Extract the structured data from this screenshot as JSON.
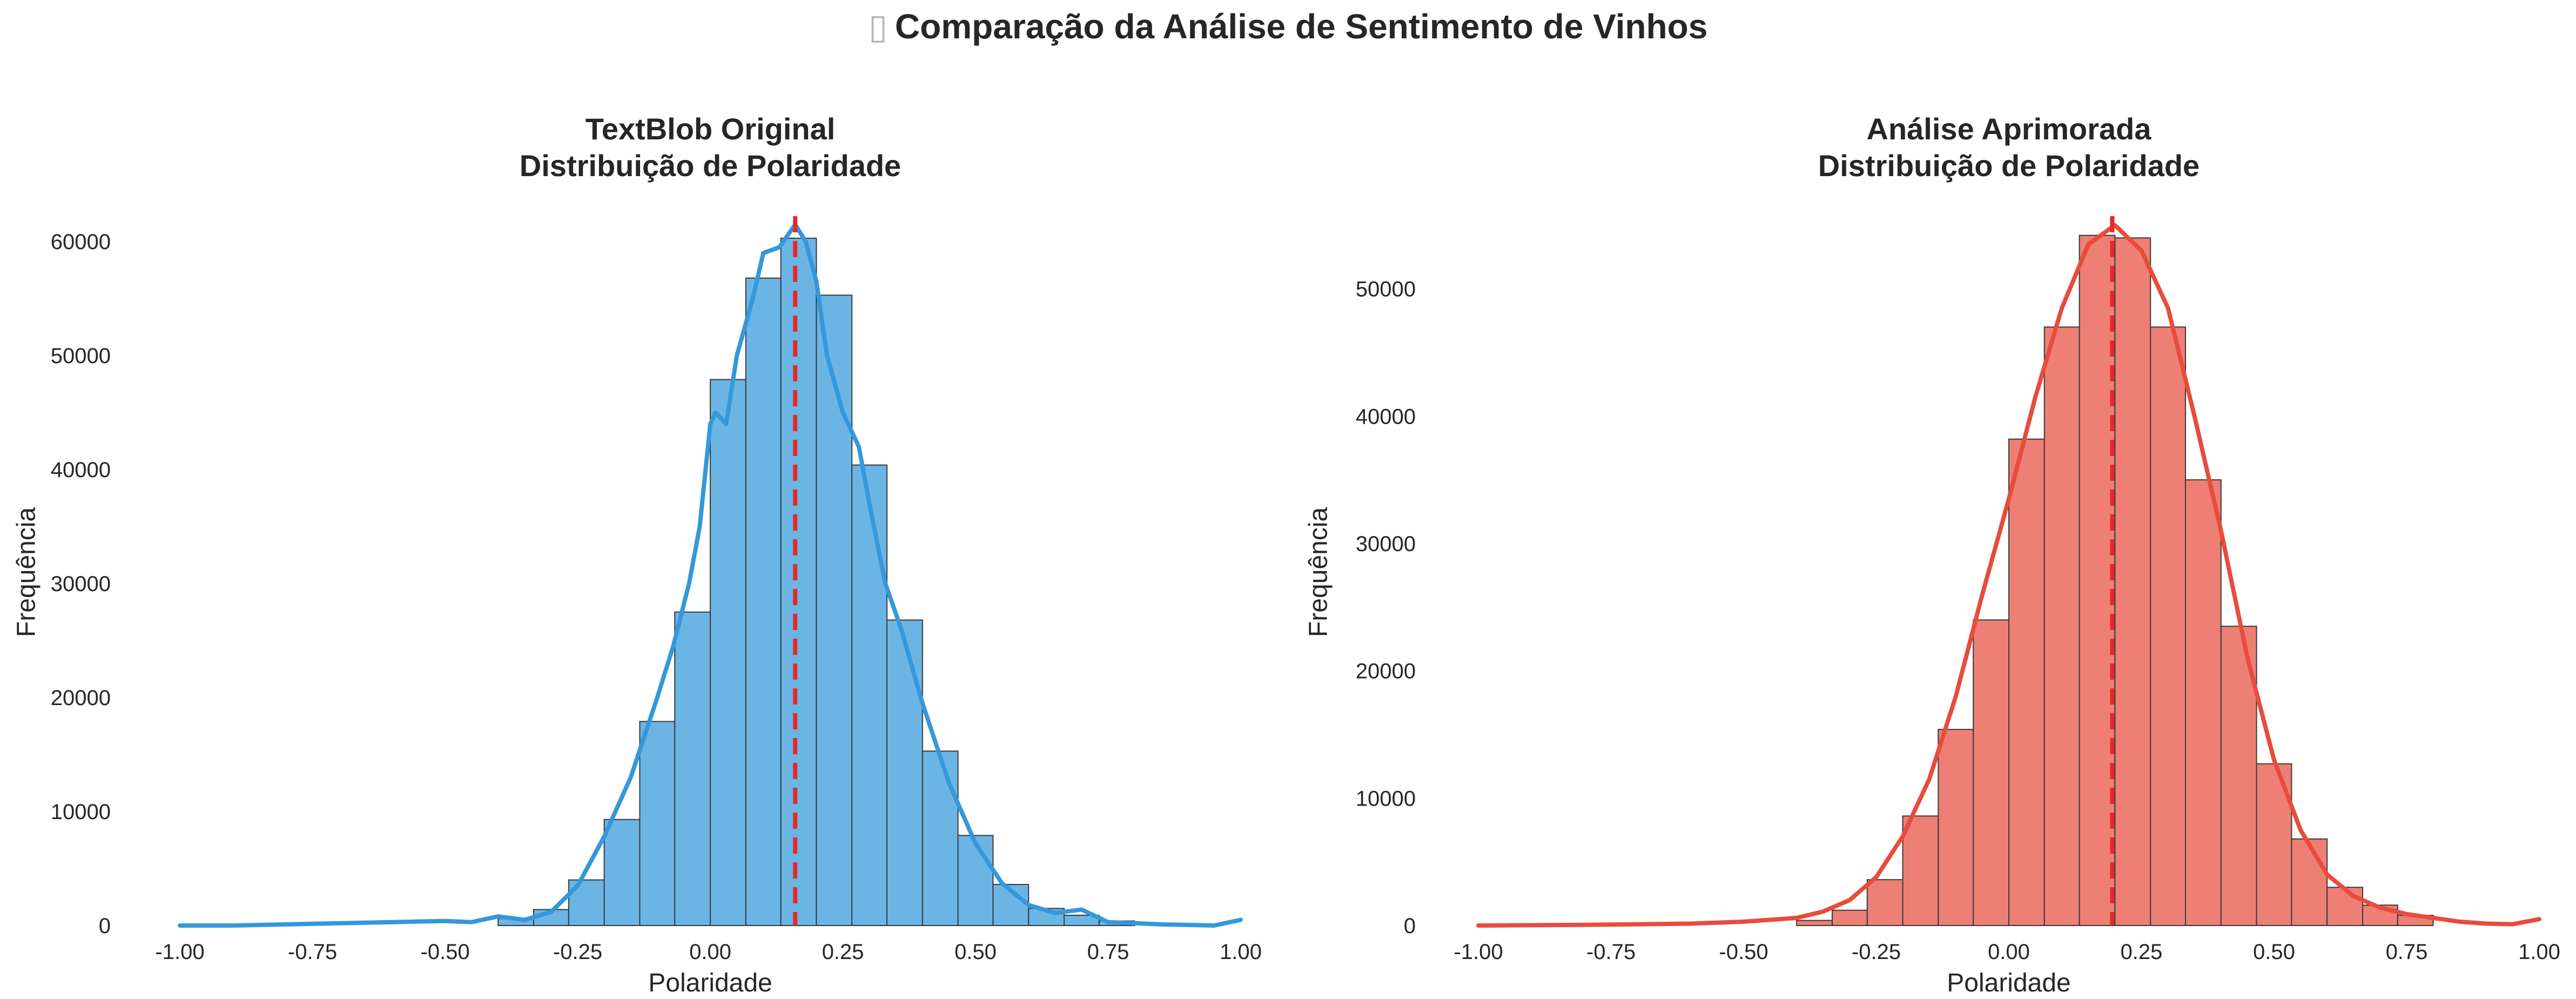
{
  "page": {
    "suptitle_glyph": "▯",
    "suptitle": "Comparação da Análise de Sentimento de Vinhos"
  },
  "chart_data": [
    {
      "type": "histogram",
      "title_line1": "TextBlob Original",
      "title_line2": "Distribuição de Polaridade",
      "xlabel": "Polaridade",
      "ylabel": "Frequência",
      "xlim": [
        -1.0,
        1.0
      ],
      "ylim": [
        0,
        62000
      ],
      "xticks": [
        "-1.00",
        "-0.75",
        "-0.50",
        "-0.25",
        "0.00",
        "0.25",
        "0.50",
        "0.75",
        "1.00"
      ],
      "yticks": [
        "0",
        "10000",
        "20000",
        "30000",
        "40000",
        "50000",
        "60000"
      ],
      "grid": false,
      "bar_color": "#6bb5e5",
      "kde_color": "#3498db",
      "mean_line_color": "#e32a2a",
      "mean_line_x": 0.16,
      "bin_edges": [
        -0.4,
        -0.333,
        -0.267,
        -0.2,
        -0.133,
        -0.067,
        0.0,
        0.067,
        0.133,
        0.2,
        0.267,
        0.333,
        0.4,
        0.467,
        0.533,
        0.6,
        0.667,
        0.733,
        0.8
      ],
      "counts": [
        600,
        1400,
        4000,
        9300,
        17900,
        27500,
        47900,
        56800,
        60300,
        55300,
        40400,
        26800,
        15300,
        7900,
        3600,
        1500,
        900,
        400
      ],
      "kde": {
        "x": [
          -1.0,
          -0.9,
          -0.8,
          -0.7,
          -0.6,
          -0.5,
          -0.45,
          -0.4,
          -0.35,
          -0.3,
          -0.25,
          -0.2,
          -0.15,
          -0.1,
          -0.07,
          -0.04,
          -0.02,
          0.0,
          0.01,
          0.03,
          0.05,
          0.08,
          0.1,
          0.13,
          0.16,
          0.18,
          0.2,
          0.22,
          0.25,
          0.28,
          0.3,
          0.33,
          0.36,
          0.4,
          0.45,
          0.5,
          0.55,
          0.6,
          0.65,
          0.7,
          0.75,
          0.8,
          0.85,
          0.9,
          0.95,
          0.98,
          1.0
        ],
        "y": [
          0,
          0,
          100,
          200,
          300,
          400,
          300,
          800,
          500,
          1200,
          3500,
          7800,
          13000,
          20000,
          24500,
          30000,
          35000,
          44000,
          45000,
          44000,
          50000,
          55000,
          59000,
          59500,
          61500,
          60000,
          56500,
          50000,
          45000,
          42000,
          37000,
          30000,
          26000,
          19500,
          12500,
          7200,
          3700,
          1800,
          1100,
          1400,
          300,
          200,
          100,
          50,
          0,
          300,
          500
        ]
      }
    },
    {
      "type": "histogram",
      "title_line1": "Análise Aprimorada",
      "title_line2": "Distribuição de Polaridade",
      "xlabel": "Polaridade",
      "ylabel": "Frequência",
      "xlim": [
        -1.0,
        1.0
      ],
      "ylim": [
        0,
        55500
      ],
      "xticks": [
        "-1.00",
        "-0.75",
        "-0.50",
        "-0.25",
        "0.00",
        "0.25",
        "0.50",
        "0.75",
        "1.00"
      ],
      "yticks": [
        "0",
        "10000",
        "20000",
        "30000",
        "40000",
        "50000"
      ],
      "grid": false,
      "bar_color": "#ee7f74",
      "kde_color": "#e74c3c",
      "mean_line_color": "#e32a2a",
      "mean_line_x": 0.195,
      "bin_edges": [
        -0.4,
        -0.333,
        -0.267,
        -0.2,
        -0.133,
        -0.067,
        0.0,
        0.067,
        0.133,
        0.2,
        0.267,
        0.333,
        0.4,
        0.467,
        0.533,
        0.6,
        0.667,
        0.733,
        0.8
      ],
      "counts": [
        400,
        1200,
        3600,
        8600,
        15400,
        24000,
        38200,
        47000,
        54200,
        54000,
        47000,
        35000,
        23500,
        12700,
        6800,
        3000,
        1600,
        800
      ],
      "kde": {
        "x": [
          -1.0,
          -0.8,
          -0.6,
          -0.5,
          -0.4,
          -0.35,
          -0.3,
          -0.25,
          -0.2,
          -0.15,
          -0.1,
          -0.05,
          0.0,
          0.05,
          0.1,
          0.15,
          0.2,
          0.25,
          0.3,
          0.35,
          0.4,
          0.45,
          0.5,
          0.55,
          0.6,
          0.65,
          0.7,
          0.75,
          0.8,
          0.85,
          0.9,
          0.95,
          1.0
        ],
        "y": [
          0,
          50,
          150,
          300,
          600,
          1100,
          2000,
          3800,
          7000,
          11500,
          18000,
          26000,
          33500,
          41500,
          48500,
          53500,
          55000,
          53000,
          48500,
          40000,
          31000,
          21000,
          13000,
          7500,
          4000,
          2300,
          1400,
          900,
          600,
          300,
          150,
          100,
          500
        ]
      }
    }
  ]
}
